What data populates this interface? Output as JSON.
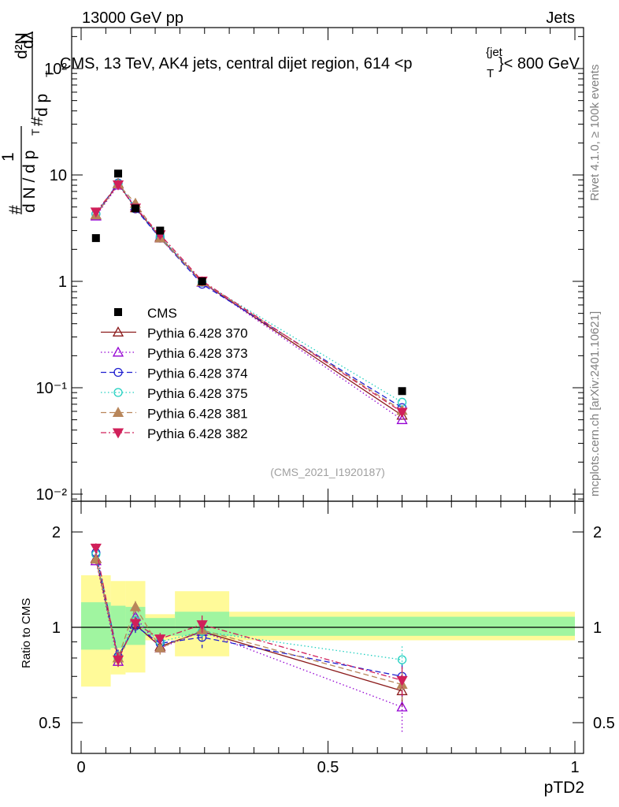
{
  "header": {
    "left": "13000 GeV pp",
    "right": "Jets"
  },
  "side_text": {
    "rivet": "Rivet 4.1.0, ≥ 100k events",
    "mcplots": "mcplots.cern.ch [arXiv:2401.10621]"
  },
  "colors": {
    "c370": "#8b1a1a",
    "c373": "#9400d3",
    "c374": "#1f1fcf",
    "c375": "#20d0c0",
    "c381": "#b8865a",
    "c382": "#d0205a",
    "band_inner": "#a0f5a0",
    "band_outer": "#fffa99"
  },
  "chart_data": [
    {
      "type": "scatter",
      "panel": "main",
      "title": "CMS, 13 TeV, AK4 jets, central dijet region, 614 <p_T^{jet}< 800 GeV",
      "title_parts": {
        "pre": "CMS, 13 TeV, AK4 jets, central dijet region, 614 <p",
        "sub": "T",
        "sup": "{jet",
        "post": "}< 800 GeV"
      },
      "ylabel_parts": {
        "hash": "#",
        "one": "1",
        "dN": "d N / d p",
        "T": "T",
        "d2N": "d²N",
        "dpT": "d p",
        "dlambda": "dλ"
      },
      "yscale": "log",
      "ylim": [
        0.008,
        250
      ],
      "xlim": [
        -0.04,
        1.0
      ],
      "yticks": [
        {
          "v": 0.01,
          "label": "10⁻²"
        },
        {
          "v": 0.1,
          "label": "10⁻¹"
        },
        {
          "v": 1,
          "label": "1"
        },
        {
          "v": 10,
          "label": "10"
        },
        {
          "v": 100,
          "label": "10²"
        }
      ],
      "watermark": "(CMS_2021_I1920187)",
      "cms": {
        "name": "CMS",
        "x": [
          0.03,
          0.075,
          0.11,
          0.16,
          0.245,
          0.65
        ],
        "y": [
          2.55,
          10.3,
          4.85,
          3.0,
          1.0,
          0.093
        ]
      },
      "series": [
        {
          "name": "Pythia 6.428 370",
          "color_key": "c370",
          "marker": "tri-up-open",
          "dash": "",
          "x": [
            0.03,
            0.075,
            0.11,
            0.16,
            0.245,
            0.65
          ],
          "y": [
            4.2,
            8.3,
            4.9,
            2.6,
            0.98,
            0.055
          ]
        },
        {
          "name": "Pythia 6.428 373",
          "color_key": "c373",
          "marker": "tri-up-open",
          "dash": "1.5,3",
          "x": [
            0.03,
            0.075,
            0.11,
            0.16,
            0.245,
            0.65
          ],
          "y": [
            4.1,
            8.0,
            5.1,
            2.55,
            0.98,
            0.05
          ]
        },
        {
          "name": "Pythia 6.428 374",
          "color_key": "c374",
          "marker": "circle-open",
          "dash": "7,4",
          "x": [
            0.03,
            0.075,
            0.11,
            0.16,
            0.245,
            0.65
          ],
          "y": [
            4.3,
            8.4,
            4.8,
            2.55,
            0.94,
            0.065
          ]
        },
        {
          "name": "Pythia 6.428 375",
          "color_key": "c375",
          "marker": "circle-open",
          "dash": "1.5,3",
          "x": [
            0.03,
            0.075,
            0.11,
            0.16,
            0.245,
            0.65
          ],
          "y": [
            4.3,
            8.3,
            4.9,
            2.65,
            0.98,
            0.073
          ]
        },
        {
          "name": "Pythia 6.428 381",
          "color_key": "c381",
          "marker": "tri-up-filled",
          "dash": "7,4",
          "x": [
            0.03,
            0.075,
            0.11,
            0.16,
            0.245,
            0.65
          ],
          "y": [
            4.2,
            8.2,
            5.4,
            2.55,
            0.99,
            0.061
          ]
        },
        {
          "name": "Pythia 6.428 382",
          "color_key": "c382",
          "marker": "tri-down-filled",
          "dash": "7,3,2,3",
          "x": [
            0.03,
            0.075,
            0.11,
            0.16,
            0.245,
            0.65
          ],
          "y": [
            4.5,
            8.1,
            4.9,
            2.75,
            1.01,
            0.059
          ]
        }
      ]
    },
    {
      "type": "scatter",
      "panel": "ratio",
      "ylabel": "Ratio to CMS",
      "xlabel": "pTD2",
      "yscale": "log",
      "ylim": [
        0.4,
        2.35
      ],
      "xlim": [
        -0.04,
        1.0
      ],
      "xticks": [
        {
          "v": 0,
          "label": "0"
        },
        {
          "v": 0.5,
          "label": "0.5"
        },
        {
          "v": 1,
          "label": "1"
        }
      ],
      "yticks": [
        {
          "v": 0.5,
          "label": "0.5"
        },
        {
          "v": 1,
          "label": "1"
        },
        {
          "v": 2,
          "label": "2"
        }
      ],
      "bins": [
        {
          "lo": 0.0,
          "hi": 0.06,
          "inner": [
            0.85,
            1.2
          ],
          "outer": [
            0.65,
            1.46
          ]
        },
        {
          "lo": 0.06,
          "hi": 0.09,
          "inner": [
            0.86,
            1.17
          ],
          "outer": [
            0.71,
            1.4
          ]
        },
        {
          "lo": 0.09,
          "hi": 0.13,
          "inner": [
            0.88,
            1.16
          ],
          "outer": [
            0.72,
            1.4
          ]
        },
        {
          "lo": 0.13,
          "hi": 0.19,
          "inner": [
            0.94,
            1.07
          ],
          "outer": [
            0.91,
            1.1
          ]
        },
        {
          "lo": 0.19,
          "hi": 0.3,
          "inner": [
            0.94,
            1.12
          ],
          "outer": [
            0.81,
            1.3
          ]
        },
        {
          "lo": 0.3,
          "hi": 1.0,
          "inner": [
            0.94,
            1.08
          ],
          "outer": [
            0.91,
            1.12
          ]
        }
      ],
      "series": [
        {
          "name": "Pythia 6.428 370",
          "color_key": "c370",
          "marker": "tri-up-open",
          "dash": "",
          "x": [
            0.03,
            0.075,
            0.11,
            0.16,
            0.245,
            0.65
          ],
          "y": [
            1.65,
            0.8,
            1.02,
            0.87,
            0.97,
            0.63
          ],
          "err": [
            0.06,
            0.04,
            0.05,
            0.04,
            0.07,
            0.07
          ]
        },
        {
          "name": "Pythia 6.428 373",
          "color_key": "c373",
          "marker": "tri-up-open",
          "dash": "1.5,3",
          "x": [
            0.03,
            0.075,
            0.11,
            0.16,
            0.245,
            0.65
          ],
          "y": [
            1.62,
            0.78,
            1.08,
            0.86,
            0.97,
            0.56
          ],
          "err": [
            0.06,
            0.04,
            0.05,
            0.04,
            0.07,
            0.1
          ]
        },
        {
          "name": "Pythia 6.428 374",
          "color_key": "c374",
          "marker": "circle-open",
          "dash": "7,4",
          "x": [
            0.03,
            0.075,
            0.11,
            0.16,
            0.245,
            0.65
          ],
          "y": [
            1.72,
            0.81,
            1.01,
            0.89,
            0.93,
            0.7
          ],
          "err": [
            0.06,
            0.04,
            0.05,
            0.04,
            0.07,
            0.07
          ]
        },
        {
          "name": "Pythia 6.428 375",
          "color_key": "c375",
          "marker": "circle-open",
          "dash": "1.5,3",
          "x": [
            0.03,
            0.075,
            0.11,
            0.16,
            0.245,
            0.65
          ],
          "y": [
            1.7,
            0.8,
            1.05,
            0.9,
            0.97,
            0.79
          ],
          "err": [
            0.06,
            0.04,
            0.05,
            0.04,
            0.07,
            0.08
          ]
        },
        {
          "name": "Pythia 6.428 381",
          "color_key": "c381",
          "marker": "tri-up-filled",
          "dash": "7,4",
          "x": [
            0.03,
            0.075,
            0.11,
            0.16,
            0.245,
            0.65
          ],
          "y": [
            1.64,
            0.8,
            1.16,
            0.86,
            0.98,
            0.66
          ],
          "err": [
            0.06,
            0.04,
            0.05,
            0.04,
            0.07,
            0.07
          ]
        },
        {
          "name": "Pythia 6.428 382",
          "color_key": "c382",
          "marker": "tri-down-filled",
          "dash": "7,3,2,3",
          "x": [
            0.03,
            0.075,
            0.11,
            0.16,
            0.245,
            0.65
          ],
          "y": [
            1.78,
            0.79,
            1.03,
            0.92,
            1.02,
            0.68
          ],
          "err": [
            0.06,
            0.04,
            0.05,
            0.04,
            0.07,
            0.07
          ]
        }
      ]
    }
  ]
}
